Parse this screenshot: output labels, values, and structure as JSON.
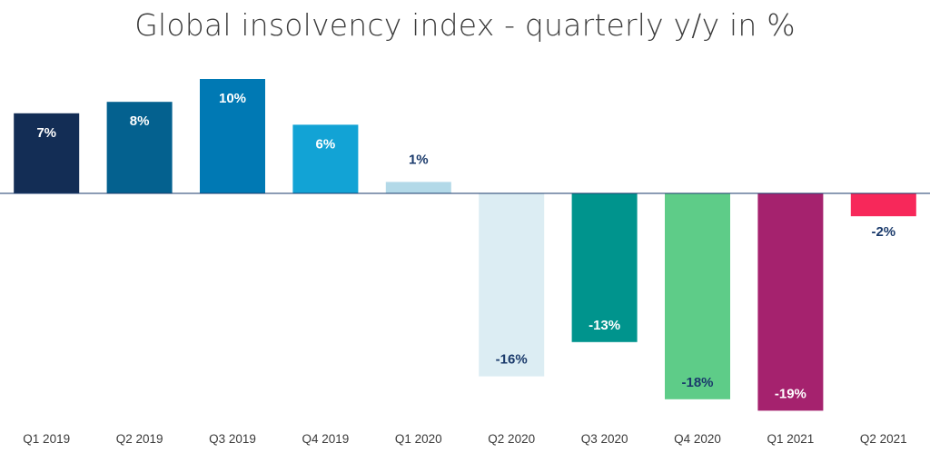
{
  "chart_data": {
    "type": "bar",
    "title": "Global insolvency index - quarterly y/y in %",
    "categories": [
      "Q1 2019",
      "Q2 2019",
      "Q3 2019",
      "Q4 2019",
      "Q1 2020",
      "Q2 2020",
      "Q3 2020",
      "Q4 2020",
      "Q1 2021",
      "Q2 2021"
    ],
    "values": [
      7,
      8,
      10,
      6,
      1,
      -16,
      -13,
      -18,
      -19,
      -2
    ],
    "data_labels": [
      "7%",
      "8%",
      "10%",
      "6%",
      "1%",
      "-16%",
      "-13%",
      "-18%",
      "-19%",
      "-2%"
    ],
    "bar_colors": [
      "#132d55",
      "#04618f",
      "#0079b4",
      "#12a3d5",
      "#b3d9e8",
      "#dcedf3",
      "#00948d",
      "#5ecc88",
      "#a5226e",
      "#f7285a"
    ],
    "label_colors": [
      "#ffffff",
      "#ffffff",
      "#ffffff",
      "#ffffff",
      "#1a3a6b",
      "#1a3a6b",
      "#ffffff",
      "#1a3a6b",
      "#ffffff",
      "#1a3a6b"
    ],
    "label_inside": [
      true,
      true,
      true,
      true,
      false,
      true,
      true,
      true,
      true,
      false
    ],
    "xlabel": "",
    "ylabel": "",
    "ylim": [
      -19,
      10
    ],
    "grid": false,
    "legend": "none"
  }
}
